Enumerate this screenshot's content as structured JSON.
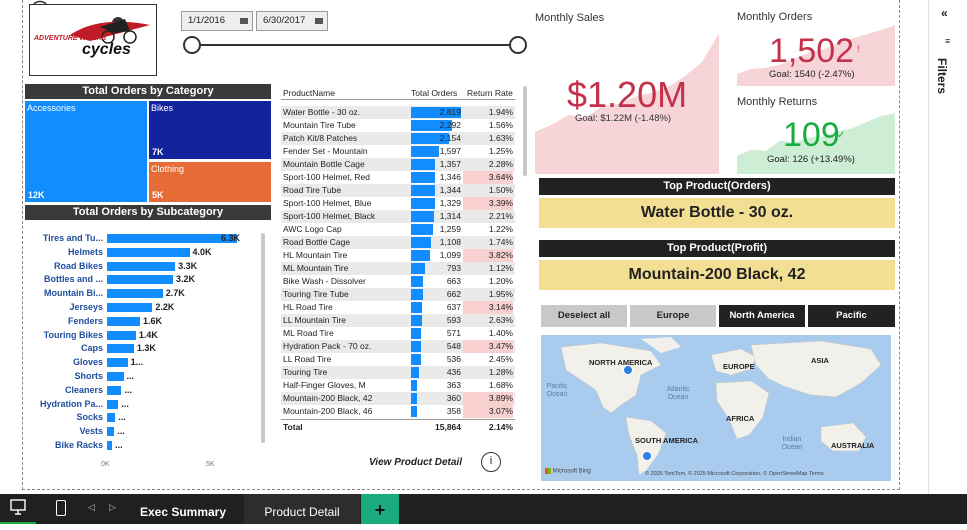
{
  "date_slicer": {
    "start": "1/1/2016",
    "end": "6/30/2017"
  },
  "category_treemap": {
    "title": "Total Orders by Category",
    "items": [
      {
        "label": "Accessories",
        "value": "12K",
        "color": "#118dff"
      },
      {
        "label": "Bikes",
        "value": "7K",
        "color": "#12239e"
      },
      {
        "label": "Clothing",
        "value": "5K",
        "color": "#e66c37"
      }
    ]
  },
  "subcategory_chart": {
    "title": "Total Orders by Subcategory",
    "axis_ticks": [
      "0K",
      "5K"
    ],
    "items": [
      {
        "label": "Tires and Tu...",
        "value": 6.3,
        "display": "6.3K"
      },
      {
        "label": "Helmets",
        "value": 4.0,
        "display": "4.0K"
      },
      {
        "label": "Road Bikes",
        "value": 3.3,
        "display": "3.3K"
      },
      {
        "label": "Bottles and ...",
        "value": 3.2,
        "display": "3.2K"
      },
      {
        "label": "Mountain Bi...",
        "value": 2.7,
        "display": "2.7K"
      },
      {
        "label": "Jerseys",
        "value": 2.2,
        "display": "2.2K"
      },
      {
        "label": "Fenders",
        "value": 1.6,
        "display": "1.6K"
      },
      {
        "label": "Touring Bikes",
        "value": 1.4,
        "display": "1.4K"
      },
      {
        "label": "Caps",
        "value": 1.3,
        "display": "1.3K"
      },
      {
        "label": "Gloves",
        "value": 1.0,
        "display": "1..."
      },
      {
        "label": "Shorts",
        "value": 0.8,
        "display": "..."
      },
      {
        "label": "Cleaners",
        "value": 0.7,
        "display": "..."
      },
      {
        "label": "Hydration Pa...",
        "value": 0.55,
        "display": "..."
      },
      {
        "label": "Socks",
        "value": 0.4,
        "display": "..."
      },
      {
        "label": "Vests",
        "value": 0.35,
        "display": "..."
      },
      {
        "label": "Bike Racks",
        "value": 0.25,
        "display": "..."
      }
    ]
  },
  "product_table": {
    "headers": [
      "ProductName",
      "Total Orders",
      "Return Rate"
    ],
    "max_orders": 2819,
    "rows": [
      {
        "name": "Water Bottle - 30 oz.",
        "orders": 2819,
        "orders_text": "2,819",
        "rr": "1.94%",
        "hl": false
      },
      {
        "name": "Mountain Tire Tube",
        "orders": 2292,
        "orders_text": "2,292",
        "rr": "1.56%",
        "hl": false
      },
      {
        "name": "Patch Kit/8 Patches",
        "orders": 2154,
        "orders_text": "2,154",
        "rr": "1.63%",
        "hl": false
      },
      {
        "name": "Fender Set - Mountain",
        "orders": 1597,
        "orders_text": "1,597",
        "rr": "1.25%",
        "hl": false
      },
      {
        "name": "Mountain Bottle Cage",
        "orders": 1357,
        "orders_text": "1,357",
        "rr": "2.28%",
        "hl": false
      },
      {
        "name": "Sport-100 Helmet, Red",
        "orders": 1346,
        "orders_text": "1,346",
        "rr": "3.64%",
        "hl": true
      },
      {
        "name": "Road Tire Tube",
        "orders": 1344,
        "orders_text": "1,344",
        "rr": "1.50%",
        "hl": false
      },
      {
        "name": "Sport-100 Helmet, Blue",
        "orders": 1329,
        "orders_text": "1,329",
        "rr": "3.39%",
        "hl": true
      },
      {
        "name": "Sport-100 Helmet, Black",
        "orders": 1314,
        "orders_text": "1,314",
        "rr": "2.21%",
        "hl": false
      },
      {
        "name": "AWC Logo Cap",
        "orders": 1259,
        "orders_text": "1,259",
        "rr": "1.22%",
        "hl": false
      },
      {
        "name": "Road Bottle Cage",
        "orders": 1108,
        "orders_text": "1,108",
        "rr": "1.74%",
        "hl": false
      },
      {
        "name": "HL Mountain Tire",
        "orders": 1099,
        "orders_text": "1,099",
        "rr": "3.82%",
        "hl": true
      },
      {
        "name": "ML Mountain Tire",
        "orders": 793,
        "orders_text": "793",
        "rr": "1.12%",
        "hl": false
      },
      {
        "name": "Bike Wash - Dissolver",
        "orders": 663,
        "orders_text": "663",
        "rr": "1.20%",
        "hl": false
      },
      {
        "name": "Touring Tire Tube",
        "orders": 662,
        "orders_text": "662",
        "rr": "1.95%",
        "hl": false
      },
      {
        "name": "HL Road Tire",
        "orders": 637,
        "orders_text": "637",
        "rr": "3.14%",
        "hl": true
      },
      {
        "name": "LL Mountain Tire",
        "orders": 593,
        "orders_text": "593",
        "rr": "2.63%",
        "hl": false
      },
      {
        "name": "ML Road Tire",
        "orders": 571,
        "orders_text": "571",
        "rr": "1.40%",
        "hl": false
      },
      {
        "name": "Hydration Pack - 70 oz.",
        "orders": 548,
        "orders_text": "548",
        "rr": "3.47%",
        "hl": true
      },
      {
        "name": "LL Road Tire",
        "orders": 536,
        "orders_text": "536",
        "rr": "2.45%",
        "hl": false
      },
      {
        "name": "Touring Tire",
        "orders": 436,
        "orders_text": "436",
        "rr": "1.28%",
        "hl": false
      },
      {
        "name": "Half-Finger Gloves, M",
        "orders": 363,
        "orders_text": "363",
        "rr": "1.68%",
        "hl": false
      },
      {
        "name": "Mountain-200 Black, 42",
        "orders": 360,
        "orders_text": "360",
        "rr": "3.89%",
        "hl": true
      },
      {
        "name": "Mountain-200 Black, 46",
        "orders": 358,
        "orders_text": "358",
        "rr": "3.07%",
        "hl": true
      }
    ],
    "total": {
      "label": "Total",
      "orders": "15,864",
      "rr": "2.14%"
    }
  },
  "view_detail": {
    "label": "View Product Detail"
  },
  "monthly_sales": {
    "title": "Monthly Sales",
    "value": "$1.20M",
    "mark": "!",
    "goal": "Goal: $1.22M (-1.48%)",
    "spark": [
      30,
      35,
      42,
      40,
      48,
      50,
      55,
      58,
      62,
      70,
      80,
      100
    ]
  },
  "monthly_orders": {
    "title": "Monthly Orders",
    "value": "1,502",
    "mark": "!",
    "goal": "Goal: 1540 (-2.47%)",
    "spark": [
      20,
      28,
      30,
      35,
      45,
      55,
      60,
      70,
      78,
      85,
      92,
      100
    ]
  },
  "monthly_returns": {
    "title": "Monthly Returns",
    "value": "109",
    "mark": "✓",
    "goal": "Goal: 126 (+13.49%)",
    "spark": [
      30,
      40,
      38,
      55,
      52,
      60,
      62,
      70,
      75,
      85,
      95,
      100
    ]
  },
  "top_orders": {
    "title": "Top Product(Orders)",
    "value": "Water Bottle - 30 oz."
  },
  "top_profit": {
    "title": "Top Product(Profit)",
    "value": "Mountain-200 Black, 42"
  },
  "continent_slicer": {
    "buttons": [
      {
        "label": "Deselect all",
        "selected": false
      },
      {
        "label": "Europe",
        "selected": false
      },
      {
        "label": "North America",
        "selected": true
      },
      {
        "label": "Pacific",
        "selected": true
      }
    ]
  },
  "map": {
    "continents": [
      "NORTH AMERICA",
      "EUROPE",
      "ASIA",
      "AFRICA",
      "SOUTH AMERICA",
      "AUSTRALIA"
    ],
    "oceans": [
      "Pacific Ocean",
      "Atlantic Ocean",
      "Indian Ocean"
    ],
    "brand": "Microsoft Bing",
    "credits": "© 2025 TomTom, © 2025 Microsoft Corporation, © OpenStreetMap Terms"
  },
  "filters": {
    "label": "Filters"
  },
  "pages": {
    "tabs": [
      "Exec Summary",
      "Product Detail"
    ],
    "add": "+"
  },
  "logo": {
    "line1": "ADVENTURE WORKS",
    "line2": "cycles"
  }
}
